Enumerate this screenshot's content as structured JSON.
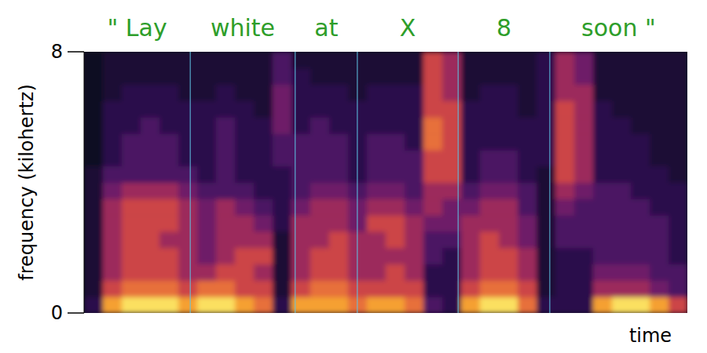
{
  "chart_data": {
    "type": "heatmap",
    "annotations": [
      "\" Lay",
      "white",
      "at",
      "X",
      "8",
      "soon \""
    ],
    "boundaries": [
      0.176,
      0.35,
      0.453,
      0.62,
      0.772
    ],
    "x_label": "time",
    "y_label": "frequency (kilohertz)",
    "xlim": [
      0,
      1
    ],
    "ylim": [
      0,
      8
    ],
    "yticks": [
      0,
      8
    ],
    "tick_labels": "y",
    "zlim": [
      0,
      9
    ],
    "cells": [
      [
        2,
        1,
        1,
        1,
        1,
        1,
        1,
        1,
        1,
        0,
        0,
        0,
        0,
        0,
        0,
        0
      ],
      [
        8,
        6,
        5,
        5,
        5,
        5,
        5,
        4,
        3,
        2,
        2,
        2,
        2,
        1,
        1,
        1
      ],
      [
        9,
        7,
        6,
        6,
        6,
        6,
        6,
        5,
        3,
        3,
        3,
        2,
        2,
        2,
        1,
        1
      ],
      [
        9,
        7,
        6,
        6,
        6,
        6,
        6,
        5,
        3,
        3,
        3,
        3,
        2,
        2,
        1,
        1
      ],
      [
        9,
        7,
        6,
        6,
        5,
        6,
        6,
        5,
        3,
        3,
        3,
        2,
        2,
        2,
        1,
        1
      ],
      [
        8,
        6,
        5,
        5,
        5,
        5,
        5,
        4,
        3,
        2,
        2,
        2,
        2,
        1,
        1,
        1
      ],
      [
        9,
        7,
        5,
        4,
        4,
        4,
        4,
        3,
        2,
        2,
        2,
        2,
        2,
        1,
        1,
        1
      ],
      [
        9,
        7,
        6,
        5,
        5,
        5,
        5,
        3,
        3,
        3,
        3,
        3,
        2,
        2,
        1,
        1
      ],
      [
        8,
        6,
        6,
        6,
        5,
        5,
        4,
        3,
        2,
        2,
        2,
        2,
        2,
        1,
        1,
        1
      ],
      [
        7,
        6,
        5,
        6,
        5,
        4,
        3,
        2,
        2,
        2,
        2,
        2,
        1,
        1,
        1,
        1
      ],
      [
        2,
        1,
        1,
        1,
        1,
        2,
        2,
        2,
        2,
        3,
        3,
        4,
        4,
        4,
        3,
        3
      ],
      [
        8,
        6,
        5,
        5,
        5,
        5,
        4,
        3,
        3,
        3,
        3,
        2,
        2,
        2,
        2,
        1
      ],
      [
        8,
        7,
        6,
        6,
        5,
        5,
        5,
        4,
        3,
        3,
        3,
        3,
        2,
        2,
        1,
        1
      ],
      [
        8,
        7,
        6,
        6,
        6,
        5,
        5,
        4,
        3,
        3,
        3,
        2,
        2,
        2,
        1,
        1
      ],
      [
        7,
        6,
        5,
        5,
        5,
        4,
        4,
        3,
        2,
        2,
        2,
        2,
        2,
        1,
        1,
        1
      ],
      [
        8,
        6,
        5,
        5,
        5,
        6,
        5,
        4,
        3,
        3,
        3,
        2,
        2,
        2,
        1,
        1
      ],
      [
        8,
        6,
        6,
        5,
        6,
        6,
        5,
        4,
        3,
        3,
        3,
        2,
        2,
        2,
        1,
        1
      ],
      [
        7,
        6,
        5,
        5,
        5,
        5,
        4,
        3,
        3,
        3,
        2,
        2,
        2,
        2,
        1,
        1
      ],
      [
        3,
        2,
        2,
        3,
        3,
        4,
        5,
        5,
        6,
        6,
        7,
        7,
        6,
        6,
        6,
        6
      ],
      [
        2,
        2,
        2,
        2,
        3,
        4,
        4,
        5,
        6,
        6,
        6,
        6,
        6,
        5,
        5,
        5
      ],
      [
        8,
        6,
        5,
        5,
        5,
        5,
        4,
        3,
        2,
        2,
        2,
        2,
        2,
        1,
        1,
        1
      ],
      [
        9,
        7,
        6,
        6,
        6,
        5,
        5,
        4,
        3,
        3,
        2,
        2,
        2,
        2,
        1,
        1
      ],
      [
        9,
        7,
        6,
        6,
        5,
        5,
        5,
        4,
        3,
        3,
        2,
        2,
        2,
        2,
        1,
        1
      ],
      [
        7,
        6,
        5,
        5,
        4,
        4,
        3,
        3,
        2,
        2,
        2,
        2,
        1,
        1,
        1,
        1
      ],
      [
        2,
        1,
        1,
        1,
        1,
        1,
        1,
        1,
        1,
        2,
        2,
        2,
        2,
        2,
        2,
        2
      ],
      [
        2,
        2,
        2,
        2,
        3,
        3,
        4,
        5,
        6,
        6,
        6,
        6,
        6,
        5,
        5,
        5
      ],
      [
        2,
        2,
        2,
        2,
        3,
        3,
        3,
        4,
        5,
        5,
        5,
        5,
        5,
        5,
        4,
        4
      ],
      [
        8,
        5,
        4,
        3,
        3,
        3,
        3,
        3,
        2,
        2,
        2,
        2,
        2,
        1,
        1,
        1
      ],
      [
        9,
        5,
        4,
        3,
        3,
        3,
        3,
        3,
        2,
        2,
        2,
        2,
        1,
        1,
        1,
        1
      ],
      [
        9,
        5,
        4,
        3,
        3,
        3,
        3,
        2,
        2,
        2,
        2,
        1,
        1,
        1,
        1,
        1
      ],
      [
        8,
        4,
        3,
        3,
        3,
        3,
        2,
        2,
        2,
        1,
        1,
        1,
        1,
        1,
        1,
        1
      ],
      [
        6,
        3,
        3,
        2,
        2,
        2,
        2,
        2,
        1,
        1,
        1,
        1,
        1,
        1,
        1,
        1
      ]
    ]
  }
}
